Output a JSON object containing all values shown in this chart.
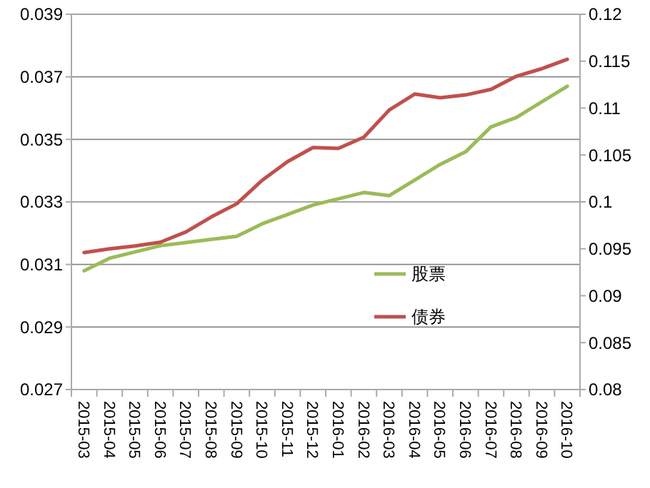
{
  "chart_data": {
    "type": "line",
    "categories": [
      "2015-03",
      "2015-04",
      "2015-05",
      "2015-06",
      "2015-07",
      "2015-08",
      "2015-09",
      "2015-10",
      "2015-11",
      "2015-12",
      "2016-01",
      "2016-02",
      "2016-03",
      "2016-04",
      "2016-05",
      "2016-06",
      "2016-07",
      "2016-08",
      "2016-09",
      "2016-10"
    ],
    "series": [
      {
        "name": "股票",
        "color": "#9bbb59",
        "values": [
          0.0308,
          0.0312,
          0.0314,
          0.0316,
          0.0317,
          0.0318,
          0.0319,
          0.0323,
          0.0326,
          0.0329,
          0.0331,
          0.0333,
          0.0332,
          0.0337,
          0.0342,
          0.0346,
          0.0354,
          0.0357,
          0.0362,
          0.0367
        ]
      },
      {
        "name": "债券",
        "color": "#c0504d",
        "axis": "y2",
        "values": [
          0.0946,
          0.095,
          0.0953,
          0.0957,
          0.0968,
          0.0984,
          0.0998,
          0.1023,
          0.1043,
          0.1058,
          0.1057,
          0.1069,
          0.1098,
          0.1115,
          0.1111,
          0.1114,
          0.112,
          0.1134,
          0.1142,
          0.1152
        ]
      }
    ],
    "ylim": [
      0.027,
      0.039
    ],
    "yticks": [
      0.027,
      0.029,
      0.031,
      0.033,
      0.035,
      0.037,
      0.039
    ],
    "y2lim": [
      0.08,
      0.12
    ],
    "y2ticks": [
      0.08,
      0.085,
      0.09,
      0.095,
      0.1,
      0.105,
      0.11,
      0.115,
      0.12
    ],
    "grid": "y",
    "legend": "right",
    "marker": "none",
    "line_style": "solid"
  }
}
